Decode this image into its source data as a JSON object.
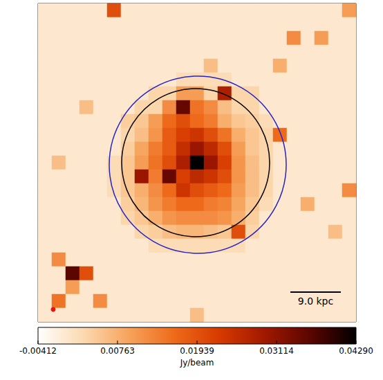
{
  "chart_data": {
    "type": "heatmap",
    "tick_labels": false,
    "grid": false,
    "cells": [
      [
        0,
        0,
        0,
        0,
        0,
        0.02,
        0,
        0,
        0,
        0,
        0,
        0,
        0,
        0,
        0,
        0,
        0,
        0,
        0,
        0,
        0,
        0,
        0.01
      ],
      [
        0,
        0,
        0,
        0,
        0,
        0,
        0,
        0,
        0,
        0,
        0,
        0,
        0,
        0,
        0,
        0,
        0,
        0,
        0,
        0,
        0,
        0,
        0
      ],
      [
        0,
        0,
        0,
        0,
        0,
        0,
        0,
        0,
        0,
        0,
        0,
        0,
        0,
        0,
        0,
        0,
        0,
        0,
        0.012,
        0,
        0.01,
        0,
        0
      ],
      [
        0,
        0,
        0,
        0,
        0,
        0,
        0,
        0,
        0,
        0,
        0,
        0,
        0,
        0,
        0,
        0,
        0,
        0,
        0,
        0,
        0,
        0,
        0
      ],
      [
        0,
        0,
        0,
        0,
        0,
        0,
        0,
        0,
        0,
        0,
        0,
        0,
        0.006,
        0,
        0,
        0,
        0,
        0.008,
        0,
        0,
        0,
        0,
        0
      ],
      [
        0,
        0,
        0,
        0,
        0,
        0,
        0,
        0,
        0,
        0,
        0.002,
        0.002,
        0.002,
        0.002,
        0,
        0,
        0,
        0,
        0,
        0,
        0,
        0,
        0
      ],
      [
        0,
        0,
        0,
        0,
        0,
        0,
        0,
        0,
        0.003,
        0.003,
        0.01,
        0.01,
        0.003,
        0.028,
        0.003,
        0.003,
        0,
        0,
        0,
        0,
        0,
        0,
        0
      ],
      [
        0,
        0,
        0,
        0.006,
        0,
        0,
        0,
        0.003,
        0.003,
        0.012,
        0.035,
        0.015,
        0.012,
        0.006,
        0.003,
        0.003,
        0,
        0,
        0,
        0,
        0,
        0,
        0
      ],
      [
        0,
        0,
        0,
        0,
        0,
        0,
        0.004,
        0.005,
        0.01,
        0.016,
        0.02,
        0.016,
        0.014,
        0.008,
        0.005,
        0.004,
        0.002,
        0,
        0,
        0,
        0,
        0,
        0
      ],
      [
        0,
        0,
        0,
        0,
        0,
        0,
        0.003,
        0.006,
        0.011,
        0.018,
        0.022,
        0.024,
        0.02,
        0.015,
        0.008,
        0.005,
        0.003,
        0.016,
        0,
        0,
        0,
        0,
        0
      ],
      [
        0,
        0,
        0,
        0,
        0,
        0,
        0.004,
        0.009,
        0.014,
        0.018,
        0.025,
        0.03,
        0.026,
        0.02,
        0.01,
        0.005,
        0.003,
        0,
        0,
        0,
        0,
        0,
        0
      ],
      [
        0,
        0.006,
        0,
        0,
        0,
        0.002,
        0.005,
        0.01,
        0.015,
        0.02,
        0.028,
        0.043,
        0.03,
        0.022,
        0.011,
        0.006,
        0.003,
        0,
        0,
        0,
        0,
        0,
        0
      ],
      [
        0,
        0,
        0,
        0,
        0,
        0.002,
        0.005,
        0.03,
        0.014,
        0.035,
        0.022,
        0.026,
        0.024,
        0.02,
        0.011,
        0.006,
        0.003,
        0,
        0,
        0,
        0,
        0,
        0
      ],
      [
        0,
        0,
        0,
        0,
        0,
        0.002,
        0.005,
        0.008,
        0.012,
        0.016,
        0.024,
        0.02,
        0.018,
        0.016,
        0.01,
        0.006,
        0.003,
        0,
        0,
        0,
        0,
        0,
        0.012
      ],
      [
        0,
        0,
        0,
        0,
        0,
        0,
        0.004,
        0.007,
        0.011,
        0.014,
        0.016,
        0.016,
        0.014,
        0.013,
        0.009,
        0.005,
        0.002,
        0,
        0,
        0.008,
        0,
        0,
        0
      ],
      [
        0,
        0,
        0,
        0,
        0,
        0,
        0.003,
        0.005,
        0.008,
        0.011,
        0.012,
        0.012,
        0.012,
        0.011,
        0.008,
        0.004,
        0,
        0,
        0,
        0,
        0,
        0,
        0
      ],
      [
        0,
        0,
        0,
        0,
        0,
        0,
        0,
        0.003,
        0.004,
        0.006,
        0.007,
        0.007,
        0.006,
        0.005,
        0.02,
        0.003,
        0,
        0,
        0,
        0,
        0,
        0.006,
        0
      ],
      [
        0,
        0,
        0,
        0,
        0,
        0,
        0,
        0,
        0.002,
        0.002,
        0.002,
        0.002,
        0.002,
        0.002,
        0.002,
        0,
        0,
        0,
        0,
        0,
        0,
        0,
        0
      ],
      [
        0,
        0.012,
        0,
        0,
        0,
        0,
        0,
        0,
        0,
        0,
        0,
        0,
        0,
        0,
        0,
        0,
        0,
        0,
        0,
        0,
        0,
        0,
        0
      ],
      [
        0,
        0,
        0.036,
        0.02,
        0,
        0,
        0,
        0,
        0,
        0,
        0,
        0,
        0,
        0,
        0,
        0,
        0,
        0,
        0,
        0,
        0,
        0,
        0
      ],
      [
        0,
        0,
        0.01,
        0,
        0,
        0,
        0,
        0,
        0,
        0,
        0,
        0,
        0,
        0,
        0,
        0,
        0,
        0,
        0,
        0,
        0,
        0,
        0
      ],
      [
        0,
        0.015,
        0,
        0,
        0.012,
        0,
        0,
        0,
        0,
        0,
        0,
        0,
        0,
        0,
        0,
        0,
        0,
        0,
        0,
        0,
        0,
        0,
        0
      ],
      [
        0,
        0,
        0,
        0,
        0,
        0,
        0,
        0,
        0,
        0,
        0,
        0.006,
        0,
        0,
        0,
        0,
        0,
        0,
        0,
        0,
        0,
        0,
        0
      ]
    ],
    "colorbar": {
      "label": "Jy/beam",
      "range": [
        -0.00412,
        0.0429
      ],
      "ticks": [
        -0.00412,
        0.00763,
        0.01939,
        0.03114,
        {
          "value": 0.0429,
          "label": "0.04290"
        }
      ]
    },
    "circles": [
      {
        "center": [
          11.4,
          11.5
        ],
        "radius": 5.35,
        "color": "#000000"
      },
      {
        "center": [
          11.55,
          11.65
        ],
        "radius": 6.4,
        "color": "#2323c8"
      }
    ],
    "scale_bar": {
      "label": "9.0 kpc",
      "length": 3.65
    }
  }
}
